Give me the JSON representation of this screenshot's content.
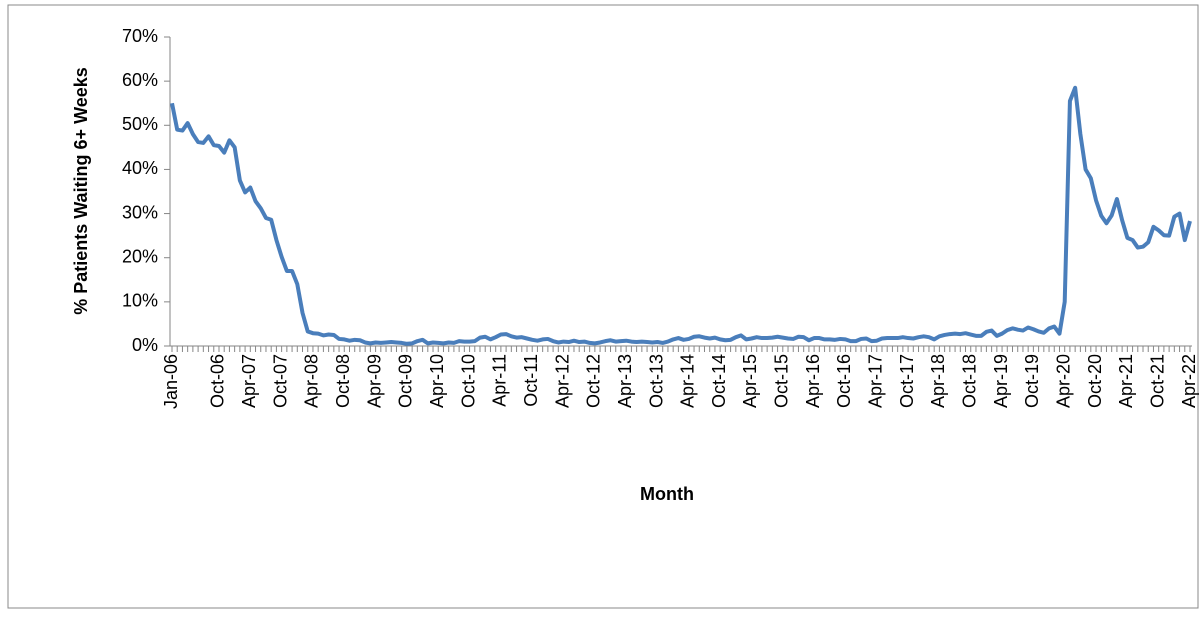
{
  "chart_data": {
    "type": "line",
    "y_label": "% Patients Waiting 6+ Weeks",
    "x_label": "Month",
    "categories": [
      "Jan-06",
      null,
      null,
      null,
      null,
      null,
      null,
      null,
      null,
      "Oct-06",
      null,
      null,
      null,
      null,
      null,
      "Apr-07",
      null,
      null,
      null,
      null,
      null,
      "Oct-07",
      null,
      null,
      null,
      null,
      null,
      "Apr-08",
      null,
      null,
      null,
      null,
      null,
      "Oct-08",
      null,
      null,
      null,
      null,
      null,
      "Apr-09",
      null,
      null,
      null,
      null,
      null,
      "Oct-09",
      null,
      null,
      null,
      null,
      null,
      "Apr-10",
      null,
      null,
      null,
      null,
      null,
      "Oct-10",
      null,
      null,
      null,
      null,
      null,
      "Apr-11",
      null,
      null,
      null,
      null,
      null,
      "Oct-11",
      null,
      null,
      null,
      null,
      null,
      "Apr-12",
      null,
      null,
      null,
      null,
      null,
      "Oct-12",
      null,
      null,
      null,
      null,
      null,
      "Apr-13",
      null,
      null,
      null,
      null,
      null,
      "Oct-13",
      null,
      null,
      null,
      null,
      null,
      "Apr-14",
      null,
      null,
      null,
      null,
      null,
      "Oct-14",
      null,
      null,
      null,
      null,
      null,
      "Apr-15",
      null,
      null,
      null,
      null,
      null,
      "Oct-15",
      null,
      null,
      null,
      null,
      null,
      "Apr-16",
      null,
      null,
      null,
      null,
      null,
      "Oct-16",
      null,
      null,
      null,
      null,
      null,
      "Apr-17",
      null,
      null,
      null,
      null,
      null,
      "Oct-17",
      null,
      null,
      null,
      null,
      null,
      "Apr-18",
      null,
      null,
      null,
      null,
      null,
      "Oct-18",
      null,
      null,
      null,
      null,
      null,
      "Apr-19",
      null,
      null,
      null,
      null,
      null,
      "Oct-19",
      null,
      null,
      null,
      null,
      null,
      "Apr-20",
      null,
      null,
      null,
      null,
      null,
      "Oct-20",
      null,
      null,
      null,
      null,
      null,
      "Apr-21",
      null,
      null,
      null,
      null,
      null,
      "Oct-21",
      null,
      null,
      null,
      null,
      null,
      "Apr-22"
    ],
    "series": [
      {
        "name": "% Patients Waiting 6+ Weeks",
        "color": "#4a7ebb",
        "values": [
          55,
          49,
          48.8,
          50.5,
          48,
          46.2,
          46,
          47.5,
          45.5,
          45.3,
          43.8,
          46.6,
          45,
          37.5,
          34.8,
          35.9,
          32.8,
          31.2,
          29,
          28.6,
          24,
          20.2,
          17,
          17,
          14,
          7.5,
          3.3,
          2.9,
          2.8,
          2.4,
          2.6,
          2.5,
          1.6,
          1.5,
          1.2,
          1.4,
          1.3,
          0.8,
          0.6,
          0.8,
          0.7,
          0.8,
          0.9,
          0.8,
          0.7,
          0.5,
          0.6,
          1.1,
          1.4,
          0.6,
          0.8,
          0.7,
          0.6,
          0.8,
          0.7,
          1.1,
          1,
          1,
          1.1,
          1.9,
          2.1,
          1.5,
          2,
          2.6,
          2.7,
          2.2,
          1.9,
          2,
          1.7,
          1.4,
          1.2,
          1.5,
          1.6,
          1.1,
          0.8,
          1,
          0.9,
          1.2,
          0.9,
          1,
          0.7,
          0.6,
          0.8,
          1.1,
          1.3,
          1,
          1.1,
          1.2,
          1,
          0.9,
          1,
          0.9,
          0.8,
          0.9,
          0.7,
          1,
          1.5,
          1.8,
          1.4,
          1.6,
          2.1,
          2.2,
          1.9,
          1.7,
          1.9,
          1.5,
          1.3,
          1.4,
          2,
          2.4,
          1.5,
          1.7,
          2,
          1.8,
          1.8,
          1.9,
          2.1,
          1.9,
          1.7,
          1.6,
          2.1,
          2,
          1.3,
          1.8,
          1.8,
          1.5,
          1.5,
          1.4,
          1.6,
          1.5,
          1.1,
          1.1,
          1.6,
          1.7,
          1.1,
          1.2,
          1.7,
          1.8,
          1.8,
          1.8,
          2,
          1.8,
          1.7,
          2,
          2.2,
          2,
          1.5,
          2.2,
          2.5,
          2.7,
          2.8,
          2.7,
          2.9,
          2.6,
          2.3,
          2.3,
          3.2,
          3.5,
          2.3,
          2.8,
          3.6,
          4,
          3.7,
          3.5,
          4.2,
          3.8,
          3.3,
          3,
          4,
          4.4,
          2.8,
          10,
          55.5,
          58.5,
          48,
          40,
          38,
          33,
          29.5,
          27.8,
          29.6,
          33.3,
          28.5,
          24.5,
          24,
          22.3,
          22.5,
          23.5,
          27,
          26.2,
          25.1,
          25,
          29.3,
          30,
          24,
          28.3
        ]
      }
    ],
    "ylim": [
      0,
      70
    ],
    "yticks": [
      {
        "value": 0,
        "label": "0%"
      },
      {
        "value": 10,
        "label": "10%"
      },
      {
        "value": 20,
        "label": "20%"
      },
      {
        "value": 30,
        "label": "30%"
      },
      {
        "value": 40,
        "label": "40%"
      },
      {
        "value": 50,
        "label": "50%"
      },
      {
        "value": 60,
        "label": "60%"
      },
      {
        "value": 70,
        "label": "70%"
      }
    ],
    "grid": false
  }
}
